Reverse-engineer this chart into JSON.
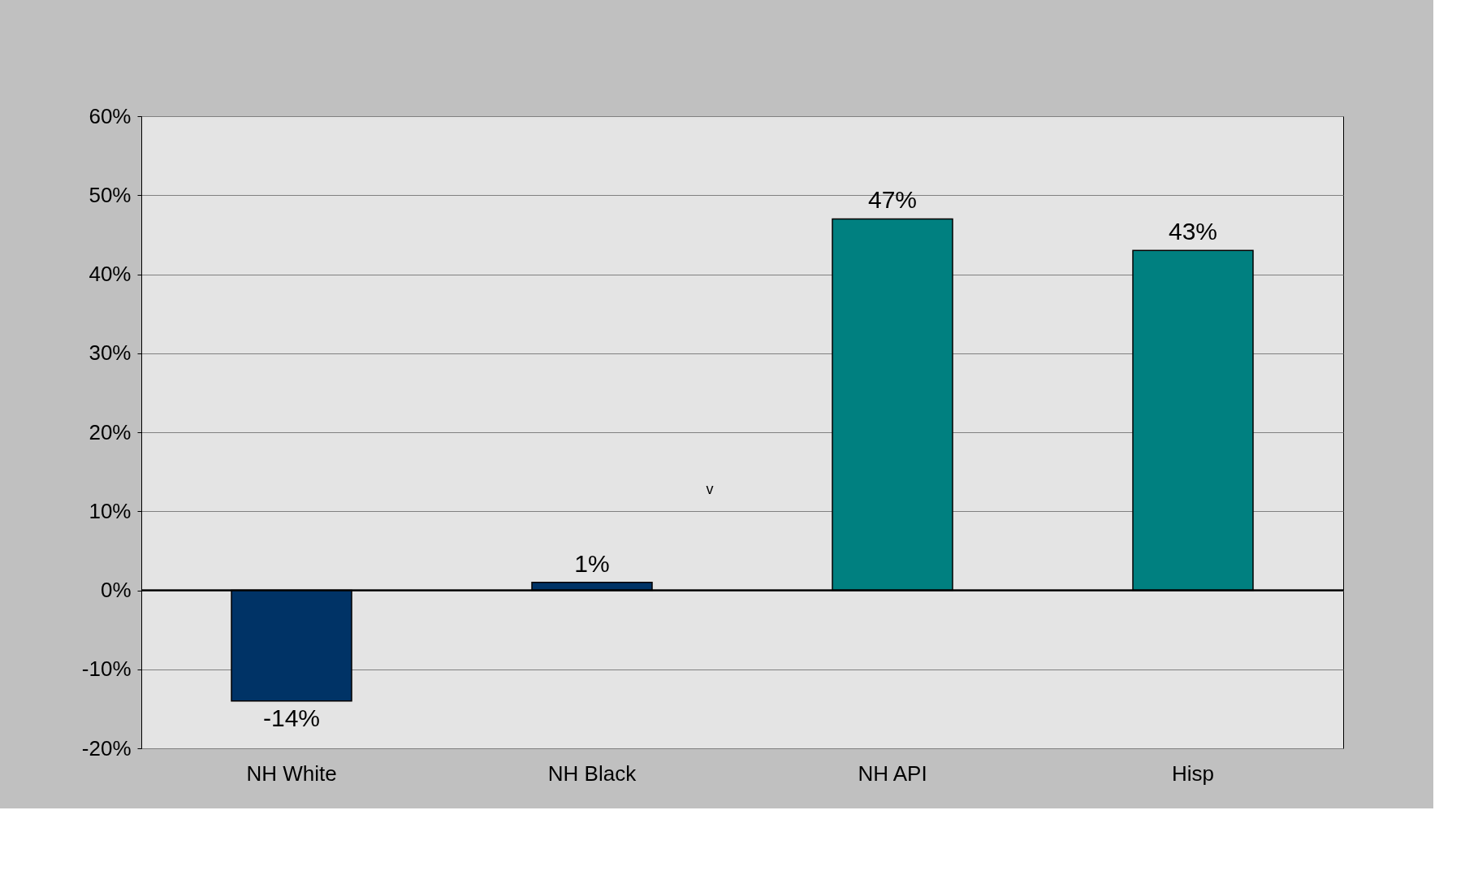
{
  "chart_data": {
    "type": "bar",
    "categories": [
      "NH White",
      "NH Black",
      "NH API",
      "Hisp"
    ],
    "values": [
      -14,
      1,
      47,
      43
    ],
    "colors": [
      "#003366",
      "#003366",
      "#008080",
      "#008080"
    ],
    "ylim": [
      -20,
      60
    ],
    "yticks": [
      {
        "value": -20,
        "label": "-20%"
      },
      {
        "value": -10,
        "label": "-10%"
      },
      {
        "value": 0,
        "label": "0%"
      },
      {
        "value": 10,
        "label": "10%"
      },
      {
        "value": 20,
        "label": "20%"
      },
      {
        "value": 30,
        "label": "30%"
      },
      {
        "value": 40,
        "label": "40%"
      },
      {
        "value": 50,
        "label": "50%"
      },
      {
        "value": 60,
        "label": "60%"
      }
    ],
    "value_labels": [
      "-14%",
      "1%",
      "47%",
      "43%"
    ],
    "annotations": [
      "v"
    ],
    "grid": "y"
  }
}
